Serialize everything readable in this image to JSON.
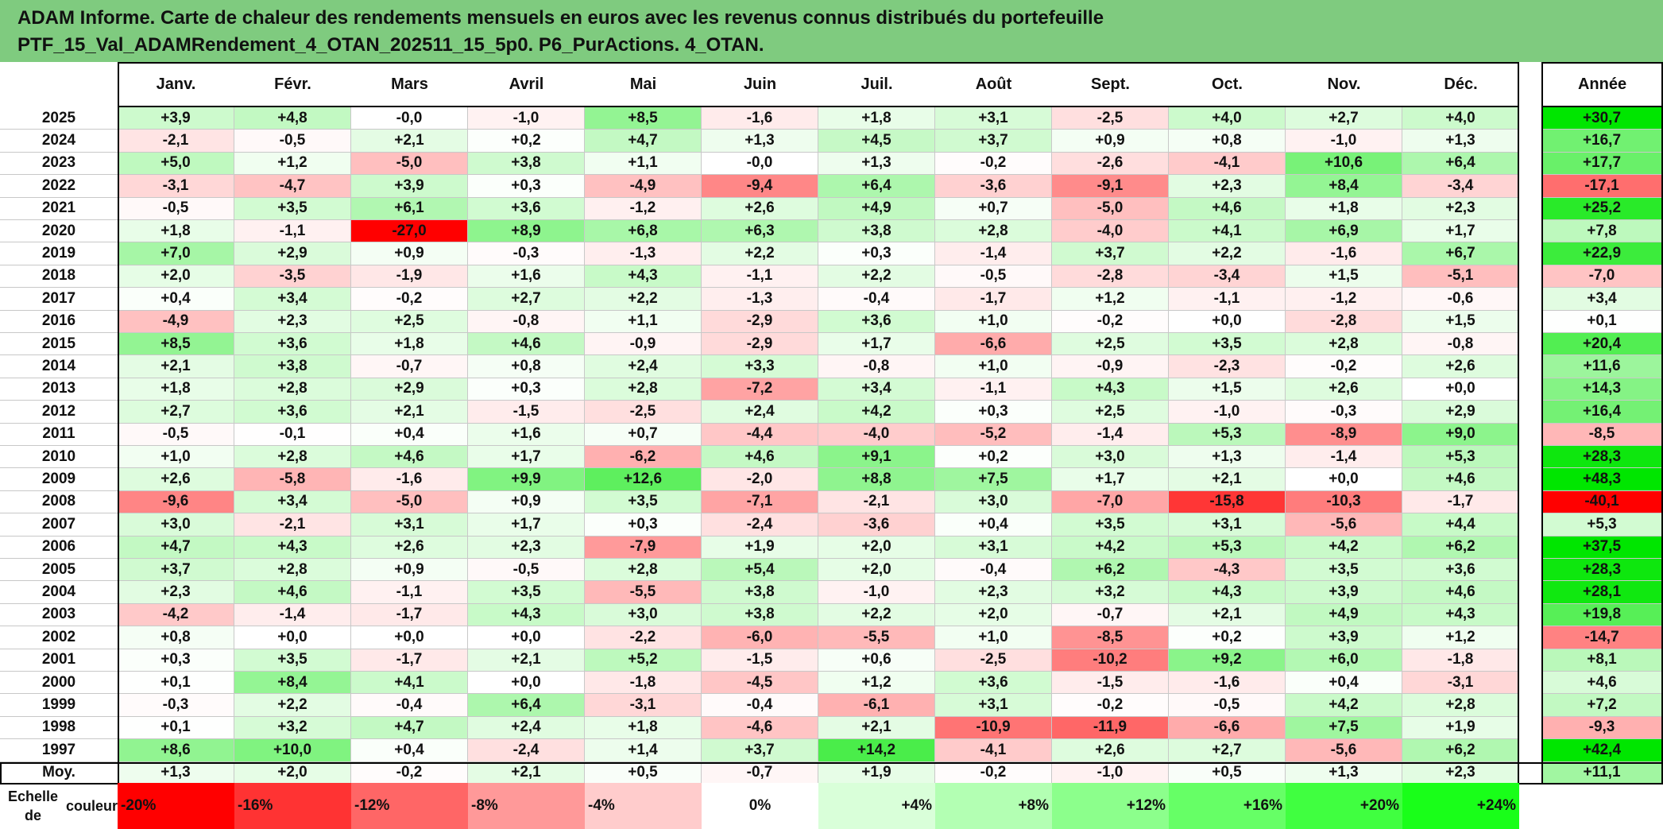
{
  "title": {
    "line1": "ADAM Informe. Carte de chaleur des rendements mensuels en euros avec les revenus connus distribués du portefeuille",
    "line2": "PTF_15_Val_ADAMRendement_4_OTAN_202511_15_5p0. P6_PurActions. 4_OTAN."
  },
  "chart_data": {
    "type": "heatmap",
    "title": "ADAM Informe. Carte de chaleur des rendements mensuels en euros avec les revenus connus distribués du portefeuille PTF_15_Val_ADAMRendement_4_OTAN_202511_15_5p0. P6_PurActions. 4_OTAN.",
    "columns": [
      "Janv.",
      "Févr.",
      "Mars",
      "Avril",
      "Mai",
      "Juin",
      "Juil.",
      "Août",
      "Sept.",
      "Oct.",
      "Nov.",
      "Déc."
    ],
    "year_column": "Année",
    "rows": [
      {
        "year": "2025",
        "values": [
          "+3,9",
          "+4,8",
          "-0,0",
          "-1,0",
          "+8,5",
          "-1,6",
          "+1,8",
          "+3,1",
          "-2,5",
          "+4,0",
          "+2,7",
          "+4,0"
        ],
        "annual": "+30,7"
      },
      {
        "year": "2024",
        "values": [
          "-2,1",
          "-0,5",
          "+2,1",
          "+0,2",
          "+4,7",
          "+1,3",
          "+4,5",
          "+3,7",
          "+0,9",
          "+0,8",
          "-1,0",
          "+1,3"
        ],
        "annual": "+16,7"
      },
      {
        "year": "2023",
        "values": [
          "+5,0",
          "+1,2",
          "-5,0",
          "+3,8",
          "+1,1",
          "-0,0",
          "+1,3",
          "-0,2",
          "-2,6",
          "-4,1",
          "+10,6",
          "+6,4"
        ],
        "annual": "+17,7"
      },
      {
        "year": "2022",
        "values": [
          "-3,1",
          "-4,7",
          "+3,9",
          "+0,3",
          "-4,9",
          "-9,4",
          "+6,4",
          "-3,6",
          "-9,1",
          "+2,3",
          "+8,4",
          "-3,4"
        ],
        "annual": "-17,1"
      },
      {
        "year": "2021",
        "values": [
          "-0,5",
          "+3,5",
          "+6,1",
          "+3,6",
          "-1,2",
          "+2,6",
          "+4,9",
          "+0,7",
          "-5,0",
          "+4,6",
          "+1,8",
          "+2,3"
        ],
        "annual": "+25,2"
      },
      {
        "year": "2020",
        "values": [
          "+1,8",
          "-1,1",
          "-27,0",
          "+8,9",
          "+6,8",
          "+6,3",
          "+3,8",
          "+2,8",
          "-4,0",
          "+4,1",
          "+6,9",
          "+1,7"
        ],
        "annual": "+7,8"
      },
      {
        "year": "2019",
        "values": [
          "+7,0",
          "+2,9",
          "+0,9",
          "-0,3",
          "-1,3",
          "+2,2",
          "+0,3",
          "-1,4",
          "+3,7",
          "+2,2",
          "-1,6",
          "+6,7"
        ],
        "annual": "+22,9"
      },
      {
        "year": "2018",
        "values": [
          "+2,0",
          "-3,5",
          "-1,9",
          "+1,6",
          "+4,3",
          "-1,1",
          "+2,2",
          "-0,5",
          "-2,8",
          "-3,4",
          "+1,5",
          "-5,1"
        ],
        "annual": "-7,0"
      },
      {
        "year": "2017",
        "values": [
          "+0,4",
          "+3,4",
          "-0,2",
          "+2,7",
          "+2,2",
          "-1,3",
          "-0,4",
          "-1,7",
          "+1,2",
          "-1,1",
          "-1,2",
          "-0,6"
        ],
        "annual": "+3,4"
      },
      {
        "year": "2016",
        "values": [
          "-4,9",
          "+2,3",
          "+2,5",
          "-0,8",
          "+1,1",
          "-2,9",
          "+3,6",
          "+1,0",
          "-0,2",
          "+0,0",
          "-2,8",
          "+1,5"
        ],
        "annual": "+0,1"
      },
      {
        "year": "2015",
        "values": [
          "+8,5",
          "+3,6",
          "+1,8",
          "+4,6",
          "-0,9",
          "-2,9",
          "+1,7",
          "-6,6",
          "+2,5",
          "+3,5",
          "+2,8",
          "-0,8"
        ],
        "annual": "+20,4"
      },
      {
        "year": "2014",
        "values": [
          "+2,1",
          "+3,8",
          "-0,7",
          "+0,8",
          "+2,4",
          "+3,3",
          "-0,8",
          "+1,0",
          "-0,9",
          "-2,3",
          "-0,2",
          "+2,6"
        ],
        "annual": "+11,6"
      },
      {
        "year": "2013",
        "values": [
          "+1,8",
          "+2,8",
          "+2,9",
          "+0,3",
          "+2,8",
          "-7,2",
          "+3,4",
          "-1,1",
          "+4,3",
          "+1,5",
          "+2,6",
          "+0,0"
        ],
        "annual": "+14,3"
      },
      {
        "year": "2012",
        "values": [
          "+2,7",
          "+3,6",
          "+2,1",
          "-1,5",
          "-2,5",
          "+2,4",
          "+4,2",
          "+0,3",
          "+2,5",
          "-1,0",
          "-0,3",
          "+2,9"
        ],
        "annual": "+16,4"
      },
      {
        "year": "2011",
        "values": [
          "-0,5",
          "-0,1",
          "+0,4",
          "+1,6",
          "+0,7",
          "-4,4",
          "-4,0",
          "-5,2",
          "-1,4",
          "+5,3",
          "-8,9",
          "+9,0"
        ],
        "annual": "-8,5"
      },
      {
        "year": "2010",
        "values": [
          "+1,0",
          "+2,8",
          "+4,6",
          "+1,7",
          "-6,2",
          "+4,6",
          "+9,1",
          "+0,2",
          "+3,0",
          "+1,3",
          "-1,4",
          "+5,3"
        ],
        "annual": "+28,3"
      },
      {
        "year": "2009",
        "values": [
          "+2,6",
          "-5,8",
          "-1,6",
          "+9,9",
          "+12,6",
          "-2,0",
          "+8,8",
          "+7,5",
          "+1,7",
          "+2,1",
          "+0,0",
          "+4,6"
        ],
        "annual": "+48,3"
      },
      {
        "year": "2008",
        "values": [
          "-9,6",
          "+3,4",
          "-5,0",
          "+0,9",
          "+3,5",
          "-7,1",
          "-2,1",
          "+3,0",
          "-7,0",
          "-15,8",
          "-10,3",
          "-1,7"
        ],
        "annual": "-40,1"
      },
      {
        "year": "2007",
        "values": [
          "+3,0",
          "-2,1",
          "+3,1",
          "+1,7",
          "+0,3",
          "-2,4",
          "-3,6",
          "+0,4",
          "+3,5",
          "+3,1",
          "-5,6",
          "+4,4"
        ],
        "annual": "+5,3"
      },
      {
        "year": "2006",
        "values": [
          "+4,7",
          "+4,3",
          "+2,6",
          "+2,3",
          "-7,9",
          "+1,9",
          "+2,0",
          "+3,1",
          "+4,2",
          "+5,3",
          "+4,2",
          "+6,2"
        ],
        "annual": "+37,5"
      },
      {
        "year": "2005",
        "values": [
          "+3,7",
          "+2,8",
          "+0,9",
          "-0,5",
          "+2,8",
          "+5,4",
          "+2,0",
          "-0,4",
          "+6,2",
          "-4,3",
          "+3,5",
          "+3,6"
        ],
        "annual": "+28,3"
      },
      {
        "year": "2004",
        "values": [
          "+2,3",
          "+4,6",
          "-1,1",
          "+3,5",
          "-5,5",
          "+3,8",
          "-1,0",
          "+2,3",
          "+3,2",
          "+4,3",
          "+3,9",
          "+4,6"
        ],
        "annual": "+28,1"
      },
      {
        "year": "2003",
        "values": [
          "-4,2",
          "-1,4",
          "-1,7",
          "+4,3",
          "+3,0",
          "+3,8",
          "+2,2",
          "+2,0",
          "-0,7",
          "+2,1",
          "+4,9",
          "+4,3"
        ],
        "annual": "+19,8"
      },
      {
        "year": "2002",
        "values": [
          "+0,8",
          "+0,0",
          "+0,0",
          "+0,0",
          "-2,2",
          "-6,0",
          "-5,5",
          "+1,0",
          "-8,5",
          "+0,2",
          "+3,9",
          "+1,2"
        ],
        "annual": "-14,7"
      },
      {
        "year": "2001",
        "values": [
          "+0,3",
          "+3,5",
          "-1,7",
          "+2,1",
          "+5,2",
          "-1,5",
          "+0,6",
          "-2,5",
          "-10,2",
          "+9,2",
          "+6,0",
          "-1,8"
        ],
        "annual": "+8,1"
      },
      {
        "year": "2000",
        "values": [
          "+0,1",
          "+8,4",
          "+4,1",
          "+0,0",
          "-1,8",
          "-4,5",
          "+1,2",
          "+3,6",
          "-1,5",
          "-1,6",
          "+0,4",
          "-3,1"
        ],
        "annual": "+4,6"
      },
      {
        "year": "1999",
        "values": [
          "-0,3",
          "+2,2",
          "-0,4",
          "+6,4",
          "-3,1",
          "-0,4",
          "-6,1",
          "+3,1",
          "-0,2",
          "-0,5",
          "+4,2",
          "+2,8"
        ],
        "annual": "+7,2"
      },
      {
        "year": "1998",
        "values": [
          "+0,1",
          "+3,2",
          "+4,7",
          "+2,4",
          "+1,8",
          "-4,6",
          "+2,1",
          "-10,9",
          "-11,9",
          "-6,6",
          "+7,5",
          "+1,9"
        ],
        "annual": "-9,3"
      },
      {
        "year": "1997",
        "values": [
          "+8,6",
          "+10,0",
          "+0,4",
          "-2,4",
          "+1,4",
          "+3,7",
          "+14,2",
          "-4,1",
          "+2,6",
          "+2,7",
          "-5,6",
          "+6,2"
        ],
        "annual": "+42,4"
      }
    ],
    "average": {
      "label": "Moy.",
      "values": [
        "+1,3",
        "+2,0",
        "-0,2",
        "+2,1",
        "+0,5",
        "-0,7",
        "+1,9",
        "-0,2",
        "-1,0",
        "+0,5",
        "+1,3",
        "+2,3"
      ],
      "annual": "+11,1"
    },
    "scale": {
      "label_line1": "Echelle de",
      "label_line2": "couleur",
      "stops": [
        {
          "label": "-20%",
          "value": -20,
          "color": "#ff0000"
        },
        {
          "label": "-16%",
          "value": -16,
          "color": "#ff3333"
        },
        {
          "label": "-12%",
          "value": -12,
          "color": "#ff6666"
        },
        {
          "label": "-8%",
          "value": -8,
          "color": "#ff9999"
        },
        {
          "label": "-4%",
          "value": -4,
          "color": "#ffcccc"
        },
        {
          "label": "0%",
          "value": 0,
          "color": "#ffffff"
        },
        {
          "label": "+4%",
          "value": 4,
          "color": "#d9ffd9"
        },
        {
          "label": "+8%",
          "value": 8,
          "color": "#b3ffb3"
        },
        {
          "label": "+12%",
          "value": 12,
          "color": "#8cff8c"
        },
        {
          "label": "+16%",
          "value": 16,
          "color": "#66ff66"
        },
        {
          "label": "+20%",
          "value": 20,
          "color": "#40ff40"
        },
        {
          "label": "+24%",
          "value": 24,
          "color": "#19ff19"
        }
      ]
    },
    "colors": {
      "negative_max": "#ff0000",
      "neutral": "#ffffff",
      "positive_max": "#00e600",
      "title_bar": "#7fcb7f"
    }
  }
}
